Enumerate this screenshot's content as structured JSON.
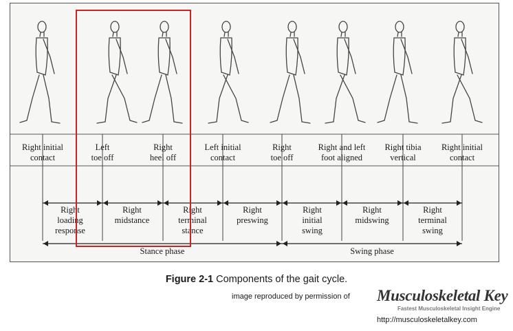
{
  "events": [
    {
      "lines": [
        "Right initial",
        "contact"
      ]
    },
    {
      "lines": [
        "Left",
        "toe off"
      ]
    },
    {
      "lines": [
        "Right",
        "heel off"
      ]
    },
    {
      "lines": [
        "Left initial",
        "contact"
      ]
    },
    {
      "lines": [
        "Right",
        "toe off"
      ]
    },
    {
      "lines": [
        "Right and left",
        "foot aligned"
      ]
    },
    {
      "lines": [
        "Right tibia",
        "vertical"
      ]
    },
    {
      "lines": [
        "Right initial",
        "contact"
      ]
    }
  ],
  "subphases": [
    {
      "lines": [
        "Right",
        "loading",
        "response"
      ]
    },
    {
      "lines": [
        "Right",
        "midstance"
      ]
    },
    {
      "lines": [
        "Right",
        "terminal",
        "stance"
      ]
    },
    {
      "lines": [
        "Right",
        "preswing"
      ]
    },
    {
      "lines": [
        "Right",
        "initial",
        "swing"
      ]
    },
    {
      "lines": [
        "Right",
        "midswing"
      ]
    },
    {
      "lines": [
        "Right",
        "terminal",
        "swing"
      ]
    }
  ],
  "phases": {
    "stance": "Stance phase",
    "swing": "Swing phase"
  },
  "highlight_color": "#cc2222",
  "caption": {
    "label": "Figure 2-1",
    "text": "Components of the gait cycle."
  },
  "credit": {
    "prefix": "image reproduced by permission of",
    "brand": "Musculoskeletal Key",
    "tagline": "Fastest Musculoskeletal Insight Engine",
    "url": "http://musculoskeletalkey.com"
  }
}
